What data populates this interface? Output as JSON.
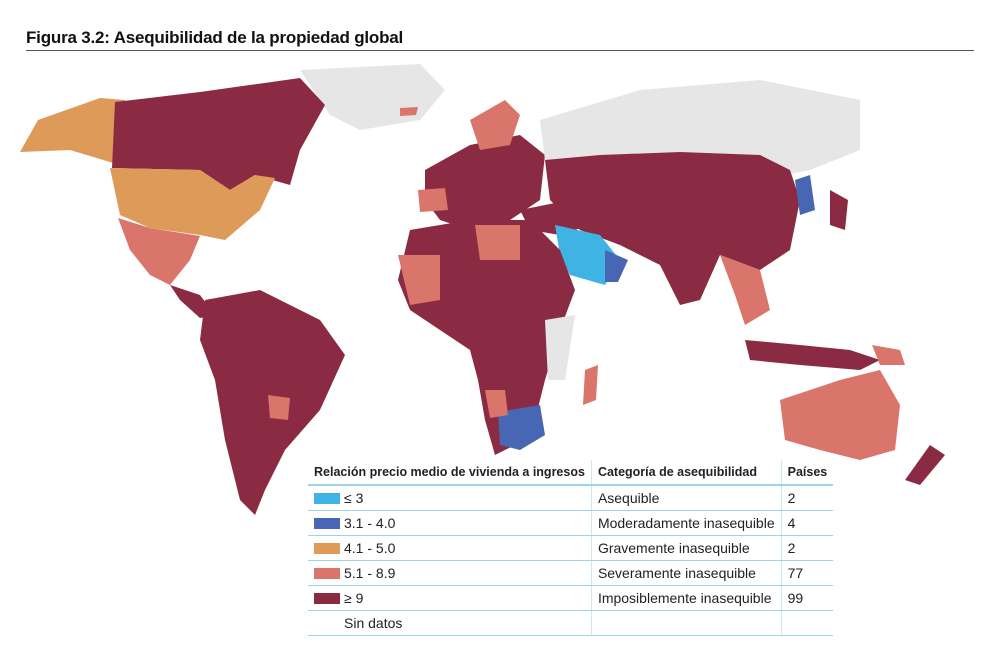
{
  "title": "Figura 3.2: Asequibilidad de la propiedad global",
  "colors": {
    "asequible": "#3fb4e4",
    "moderado": "#4766b3",
    "grave": "#dd9a58",
    "severo": "#d9756a",
    "imposible": "#8a2b43",
    "sin_datos": "#e6e6e6"
  },
  "legend": {
    "headers": [
      "Relación precio medio de vivienda a ingresos",
      "Categoría de asequibilidad",
      "Países"
    ],
    "rows": [
      {
        "range": "≤ 3",
        "category": "Asequible",
        "count": "2",
        "color": "#3fb4e4"
      },
      {
        "range": "3.1 - 4.0",
        "category": "Moderadamente inasequible",
        "count": "4",
        "color": "#4766b3"
      },
      {
        "range": "4.1 - 5.0",
        "category": "Gravemente inasequible",
        "count": "2",
        "color": "#dd9a58"
      },
      {
        "range": "5.1 - 8.9",
        "category": "Severamente inasequible",
        "count": "77",
        "color": "#d9756a"
      },
      {
        "range": "≥ 9",
        "category": "Imposiblemente inasequible",
        "count": "99",
        "color": "#8a2b43"
      },
      {
        "range": "Sin datos",
        "category": "",
        "count": "",
        "color": ""
      }
    ]
  }
}
